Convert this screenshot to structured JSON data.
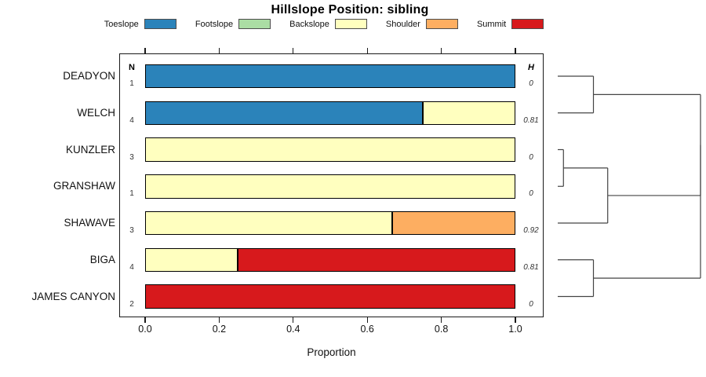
{
  "title": "Hillslope Position: sibling",
  "xlabel": "Proportion",
  "columns": {
    "n_header": "N",
    "h_header": "H"
  },
  "legend": [
    {
      "label": "Toeslope",
      "color": "#2B83BA"
    },
    {
      "label": "Footslope",
      "color": "#ABDDA4"
    },
    {
      "label": "Backslope",
      "color": "#FFFFBF"
    },
    {
      "label": "Shoulder",
      "color": "#FDAE61"
    },
    {
      "label": "Summit",
      "color": "#D7191C"
    }
  ],
  "chart_data": {
    "type": "bar",
    "orientation": "horizontal",
    "stacked": true,
    "title": "Hillslope Position: sibling",
    "xlabel": "Proportion",
    "xlim": [
      0,
      1
    ],
    "x_tick_values": [
      0.0,
      0.2,
      0.4,
      0.6,
      0.8,
      1.0
    ],
    "x_tick_labels": [
      "0.0",
      "0.2",
      "0.4",
      "0.6",
      "0.8",
      "1.0"
    ],
    "legend_categories": [
      "Toeslope",
      "Footslope",
      "Backslope",
      "Shoulder",
      "Summit"
    ],
    "rows": [
      {
        "name": "DEADYON",
        "n": "1",
        "h": "0",
        "segments": [
          {
            "category": "Toeslope",
            "value": 1.0
          }
        ]
      },
      {
        "name": "WELCH",
        "n": "4",
        "h": "0.81",
        "segments": [
          {
            "category": "Toeslope",
            "value": 0.75
          },
          {
            "category": "Backslope",
            "value": 0.25
          }
        ]
      },
      {
        "name": "KUNZLER",
        "n": "3",
        "h": "0",
        "segments": [
          {
            "category": "Backslope",
            "value": 1.0
          }
        ]
      },
      {
        "name": "GRANSHAW",
        "n": "1",
        "h": "0",
        "segments": [
          {
            "category": "Backslope",
            "value": 1.0
          }
        ]
      },
      {
        "name": "SHAWAVE",
        "n": "3",
        "h": "0.92",
        "segments": [
          {
            "category": "Backslope",
            "value": 0.667
          },
          {
            "category": "Shoulder",
            "value": 0.333
          }
        ]
      },
      {
        "name": "BIGA",
        "n": "4",
        "h": "0.81",
        "segments": [
          {
            "category": "Backslope",
            "value": 0.25
          },
          {
            "category": "Summit",
            "value": 0.75
          }
        ]
      },
      {
        "name": "JAMES CANYON",
        "n": "2",
        "h": "0",
        "segments": [
          {
            "category": "Summit",
            "value": 1.0
          }
        ]
      }
    ],
    "dendrogram": {
      "note": "right-side cluster tree, leaves ordered as rows, height 0=leaf 1=root",
      "merges": [
        {
          "a": "leaf0",
          "b": "leaf1",
          "height": 0.25
        },
        {
          "a": "leaf2",
          "b": "leaf3",
          "height": 0.04
        },
        {
          "a": "m1",
          "b": "leaf4",
          "height": 0.35
        },
        {
          "a": "leaf5",
          "b": "leaf6",
          "height": 0.25
        },
        {
          "a": "m0",
          "b": "m2",
          "height": 1.0
        },
        {
          "a": "m4",
          "b": "m3",
          "height": 1.0
        }
      ]
    }
  }
}
